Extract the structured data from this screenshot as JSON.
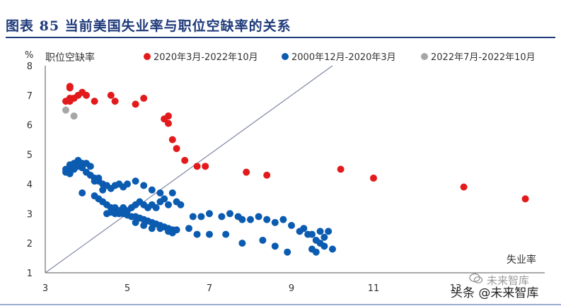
{
  "figure_title": "图表 85   当前美国失业率与职位空缺率的关系",
  "watermark": {
    "line1": "未来智库",
    "line2": "头条 @未来智库"
  },
  "chart_data": {
    "type": "scatter",
    "title": "",
    "ylabel": "职位空缺率",
    "yunit": "%",
    "xlabel": "失业率",
    "xlim": [
      3,
      15
    ],
    "ylim": [
      1,
      8
    ],
    "xticks": [
      "3",
      "5",
      "7",
      "9",
      "11",
      "13"
    ],
    "yticks": [
      "1",
      "2",
      "3",
      "4",
      "5",
      "6",
      "7",
      "8"
    ],
    "grid": false,
    "legend_position": "top",
    "reference_line": {
      "from": [
        3,
        1
      ],
      "to": [
        10,
        8
      ]
    },
    "series": [
      {
        "name": "2020年3月-2022年10月",
        "color": "#e31a1c",
        "points": [
          [
            3.5,
            6.8
          ],
          [
            3.6,
            6.8
          ],
          [
            3.6,
            6.9
          ],
          [
            3.6,
            7.25
          ],
          [
            3.6,
            7.3
          ],
          [
            3.7,
            6.9
          ],
          [
            3.8,
            7.0
          ],
          [
            3.9,
            7.1
          ],
          [
            4.0,
            7.0
          ],
          [
            4.2,
            6.8
          ],
          [
            4.6,
            7.0
          ],
          [
            4.7,
            6.8
          ],
          [
            5.2,
            6.7
          ],
          [
            5.4,
            6.9
          ],
          [
            5.9,
            6.2
          ],
          [
            6.0,
            6.3
          ],
          [
            6.0,
            6.05
          ],
          [
            6.1,
            5.5
          ],
          [
            6.2,
            5.2
          ],
          [
            6.4,
            4.8
          ],
          [
            6.7,
            4.6
          ],
          [
            6.9,
            4.6
          ],
          [
            7.9,
            4.4
          ],
          [
            8.4,
            4.3
          ],
          [
            10.2,
            4.5
          ],
          [
            11.0,
            4.2
          ],
          [
            13.2,
            3.9
          ],
          [
            14.7,
            3.5
          ]
        ]
      },
      {
        "name": "2000年12月-2020年3月",
        "color": "#0b5bb0",
        "points": [
          [
            3.5,
            4.4
          ],
          [
            3.5,
            4.5
          ],
          [
            3.6,
            4.35
          ],
          [
            3.6,
            4.5
          ],
          [
            3.6,
            4.65
          ],
          [
            3.7,
            4.5
          ],
          [
            3.7,
            4.7
          ],
          [
            3.8,
            4.6
          ],
          [
            3.8,
            4.8
          ],
          [
            3.9,
            4.55
          ],
          [
            3.9,
            4.7
          ],
          [
            4.0,
            4.7
          ],
          [
            4.0,
            4.4
          ],
          [
            4.1,
            4.6
          ],
          [
            4.1,
            4.3
          ],
          [
            4.2,
            4.2
          ],
          [
            4.2,
            4.1
          ],
          [
            4.3,
            4.1
          ],
          [
            4.3,
            4.2
          ],
          [
            4.4,
            4.0
          ],
          [
            4.4,
            3.8
          ],
          [
            4.5,
            3.95
          ],
          [
            4.6,
            3.85
          ],
          [
            4.7,
            3.95
          ],
          [
            4.8,
            4.0
          ],
          [
            4.9,
            3.9
          ],
          [
            5.0,
            4.0
          ],
          [
            5.2,
            4.1
          ],
          [
            5.4,
            3.95
          ],
          [
            5.6,
            3.8
          ],
          [
            5.8,
            3.7
          ],
          [
            6.1,
            3.7
          ],
          [
            3.9,
            3.7
          ],
          [
            4.2,
            3.6
          ],
          [
            4.3,
            3.5
          ],
          [
            4.4,
            3.4
          ],
          [
            4.5,
            3.3
          ],
          [
            4.6,
            3.2
          ],
          [
            4.7,
            3.2
          ],
          [
            4.8,
            3.1
          ],
          [
            4.9,
            3.2
          ],
          [
            5.0,
            3.1
          ],
          [
            5.1,
            3.2
          ],
          [
            5.2,
            3.3
          ],
          [
            5.3,
            3.4
          ],
          [
            5.4,
            3.3
          ],
          [
            5.5,
            3.2
          ],
          [
            5.6,
            3.3
          ],
          [
            5.7,
            3.2
          ],
          [
            5.8,
            3.4
          ],
          [
            5.9,
            3.5
          ],
          [
            6.0,
            3.3
          ],
          [
            6.2,
            3.4
          ],
          [
            6.3,
            3.3
          ],
          [
            4.5,
            3.0
          ],
          [
            4.6,
            3.05
          ],
          [
            4.7,
            3.0
          ],
          [
            4.8,
            3.0
          ],
          [
            4.9,
            3.0
          ],
          [
            5.0,
            2.95
          ],
          [
            5.1,
            2.9
          ],
          [
            5.2,
            2.9
          ],
          [
            5.3,
            2.85
          ],
          [
            5.4,
            2.8
          ],
          [
            5.5,
            2.75
          ],
          [
            5.6,
            2.7
          ],
          [
            5.7,
            2.65
          ],
          [
            5.8,
            2.6
          ],
          [
            5.9,
            2.55
          ],
          [
            6.0,
            2.5
          ],
          [
            6.1,
            2.45
          ],
          [
            6.2,
            2.45
          ],
          [
            5.2,
            2.7
          ],
          [
            5.4,
            2.6
          ],
          [
            5.6,
            2.5
          ],
          [
            5.8,
            2.5
          ],
          [
            6.0,
            2.4
          ],
          [
            6.1,
            2.35
          ],
          [
            6.5,
            2.5
          ],
          [
            6.7,
            2.3
          ],
          [
            7.0,
            2.3
          ],
          [
            7.4,
            2.3
          ],
          [
            7.8,
            2.0
          ],
          [
            6.6,
            2.9
          ],
          [
            6.8,
            2.9
          ],
          [
            7.0,
            3.0
          ],
          [
            7.3,
            2.9
          ],
          [
            7.5,
            3.0
          ],
          [
            7.7,
            2.9
          ],
          [
            7.8,
            2.8
          ],
          [
            8.0,
            2.8
          ],
          [
            8.2,
            2.9
          ],
          [
            8.4,
            2.8
          ],
          [
            8.6,
            2.7
          ],
          [
            8.8,
            2.8
          ],
          [
            9.0,
            2.6
          ],
          [
            9.2,
            2.4
          ],
          [
            9.3,
            2.5
          ],
          [
            9.4,
            2.3
          ],
          [
            9.5,
            2.3
          ],
          [
            9.6,
            2.1
          ],
          [
            9.7,
            2.0
          ],
          [
            9.8,
            2.2
          ],
          [
            9.9,
            2.4
          ],
          [
            10.0,
            1.8
          ],
          [
            9.5,
            1.8
          ],
          [
            9.6,
            1.7
          ],
          [
            9.8,
            1.9
          ],
          [
            8.3,
            2.1
          ],
          [
            8.6,
            1.9
          ],
          [
            8.9,
            1.7
          ],
          [
            9.7,
            2.4
          ]
        ]
      },
      {
        "name": "2022年7月-2022年10月",
        "color": "#a6a6a6",
        "points": [
          [
            3.5,
            6.5
          ],
          [
            3.7,
            6.3
          ]
        ]
      }
    ]
  }
}
